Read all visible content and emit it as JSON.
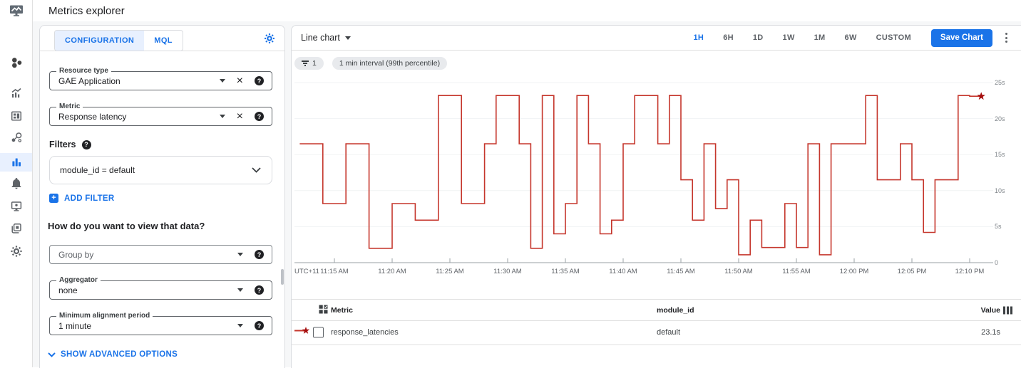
{
  "app": {
    "title": "Metrics explorer"
  },
  "nav_rail": {
    "items": [
      {
        "name": "monitoring-overview-icon"
      },
      {
        "name": "metrics-icon"
      },
      {
        "name": "dashboards-icon"
      },
      {
        "name": "services-icon"
      },
      {
        "name": "metrics-explorer-icon",
        "active": true
      },
      {
        "name": "alerting-icon"
      },
      {
        "name": "uptime-checks-icon"
      },
      {
        "name": "groups-icon"
      },
      {
        "name": "settings-icon"
      }
    ]
  },
  "config_panel": {
    "tabs": [
      {
        "label": "CONFIGURATION",
        "active": true
      },
      {
        "label": "MQL",
        "active": false
      }
    ],
    "resource_type": {
      "label": "Resource type",
      "value": "GAE Application"
    },
    "metric": {
      "label": "Metric",
      "value": "Response latency"
    },
    "filters_label": "Filters",
    "filter_chip": "module_id = default",
    "add_filter_label": "ADD FILTER",
    "view_question": "How do you want to view that data?",
    "group_by": {
      "placeholder": "Group by"
    },
    "aggregator": {
      "label": "Aggregator",
      "value": "none"
    },
    "min_alignment": {
      "label": "Minimum alignment period",
      "value": "1 minute"
    },
    "show_advanced_label": "SHOW ADVANCED OPTIONS"
  },
  "chart_panel": {
    "chart_type_label": "Line chart",
    "time_ranges": [
      "1H",
      "6H",
      "1D",
      "1W",
      "1M",
      "6W",
      "CUSTOM"
    ],
    "active_time_range": "1H",
    "save_button_label": "Save Chart",
    "filter_count_chip": "1",
    "interval_chip": "1 min interval (99th percentile)"
  },
  "chart_data": {
    "type": "line",
    "subtype": "step-after",
    "title": "",
    "xlabel": "",
    "ylabel": "",
    "ylim": [
      0,
      25
    ],
    "ytick_labels": [
      "0",
      "5s",
      "10s",
      "15s",
      "20s",
      "25s"
    ],
    "x_axis_prefix": "UTC+11",
    "xtick_labels": [
      "11:15 AM",
      "11:20 AM",
      "11:25 AM",
      "11:30 AM",
      "11:35 AM",
      "11:40 AM",
      "11:45 AM",
      "11:50 AM",
      "11:55 AM",
      "12:00 PM",
      "12:05 PM",
      "12:10 PM"
    ],
    "grid": true,
    "legend_position": "table-below",
    "series": [
      {
        "name": "response_latencies",
        "unit": "s",
        "color": "#c5362c",
        "marker_color": "#a50e0e",
        "start_time": "11:12 AM",
        "interval_minutes": 1,
        "end_marker": "star",
        "end_value_label": "23.1s",
        "values": [
          16.5,
          16.5,
          8.2,
          8.2,
          16.5,
          16.5,
          2.0,
          2.0,
          8.2,
          8.2,
          5.9,
          5.9,
          23.2,
          23.2,
          8.2,
          8.2,
          16.5,
          23.2,
          23.2,
          16.5,
          2.0,
          23.2,
          4.0,
          8.2,
          23.2,
          16.5,
          4.0,
          5.9,
          16.5,
          23.2,
          23.2,
          16.5,
          23.2,
          11.5,
          5.9,
          16.5,
          7.5,
          11.5,
          1.1,
          5.9,
          2.1,
          2.1,
          8.2,
          2.1,
          16.5,
          1.1,
          16.5,
          16.5,
          16.5,
          23.2,
          11.5,
          11.5,
          16.5,
          11.5,
          4.2,
          11.5,
          11.5,
          23.2,
          23.1
        ]
      }
    ]
  },
  "table": {
    "metric_header": "Metric",
    "module_header": "module_id",
    "value_header": "Value",
    "rows": [
      {
        "metric": "response_latencies",
        "module_id": "default",
        "value": "23.1s"
      }
    ]
  },
  "colors": {
    "accent_blue": "#1a73e8",
    "tab_active_bg": "#e8f0fe",
    "line_red": "#c5362c",
    "star_red": "#a50e0e",
    "chip_bg": "#e8eaed",
    "border": "#dadce0",
    "text": "#202124",
    "secondary_text": "#5f6368"
  }
}
